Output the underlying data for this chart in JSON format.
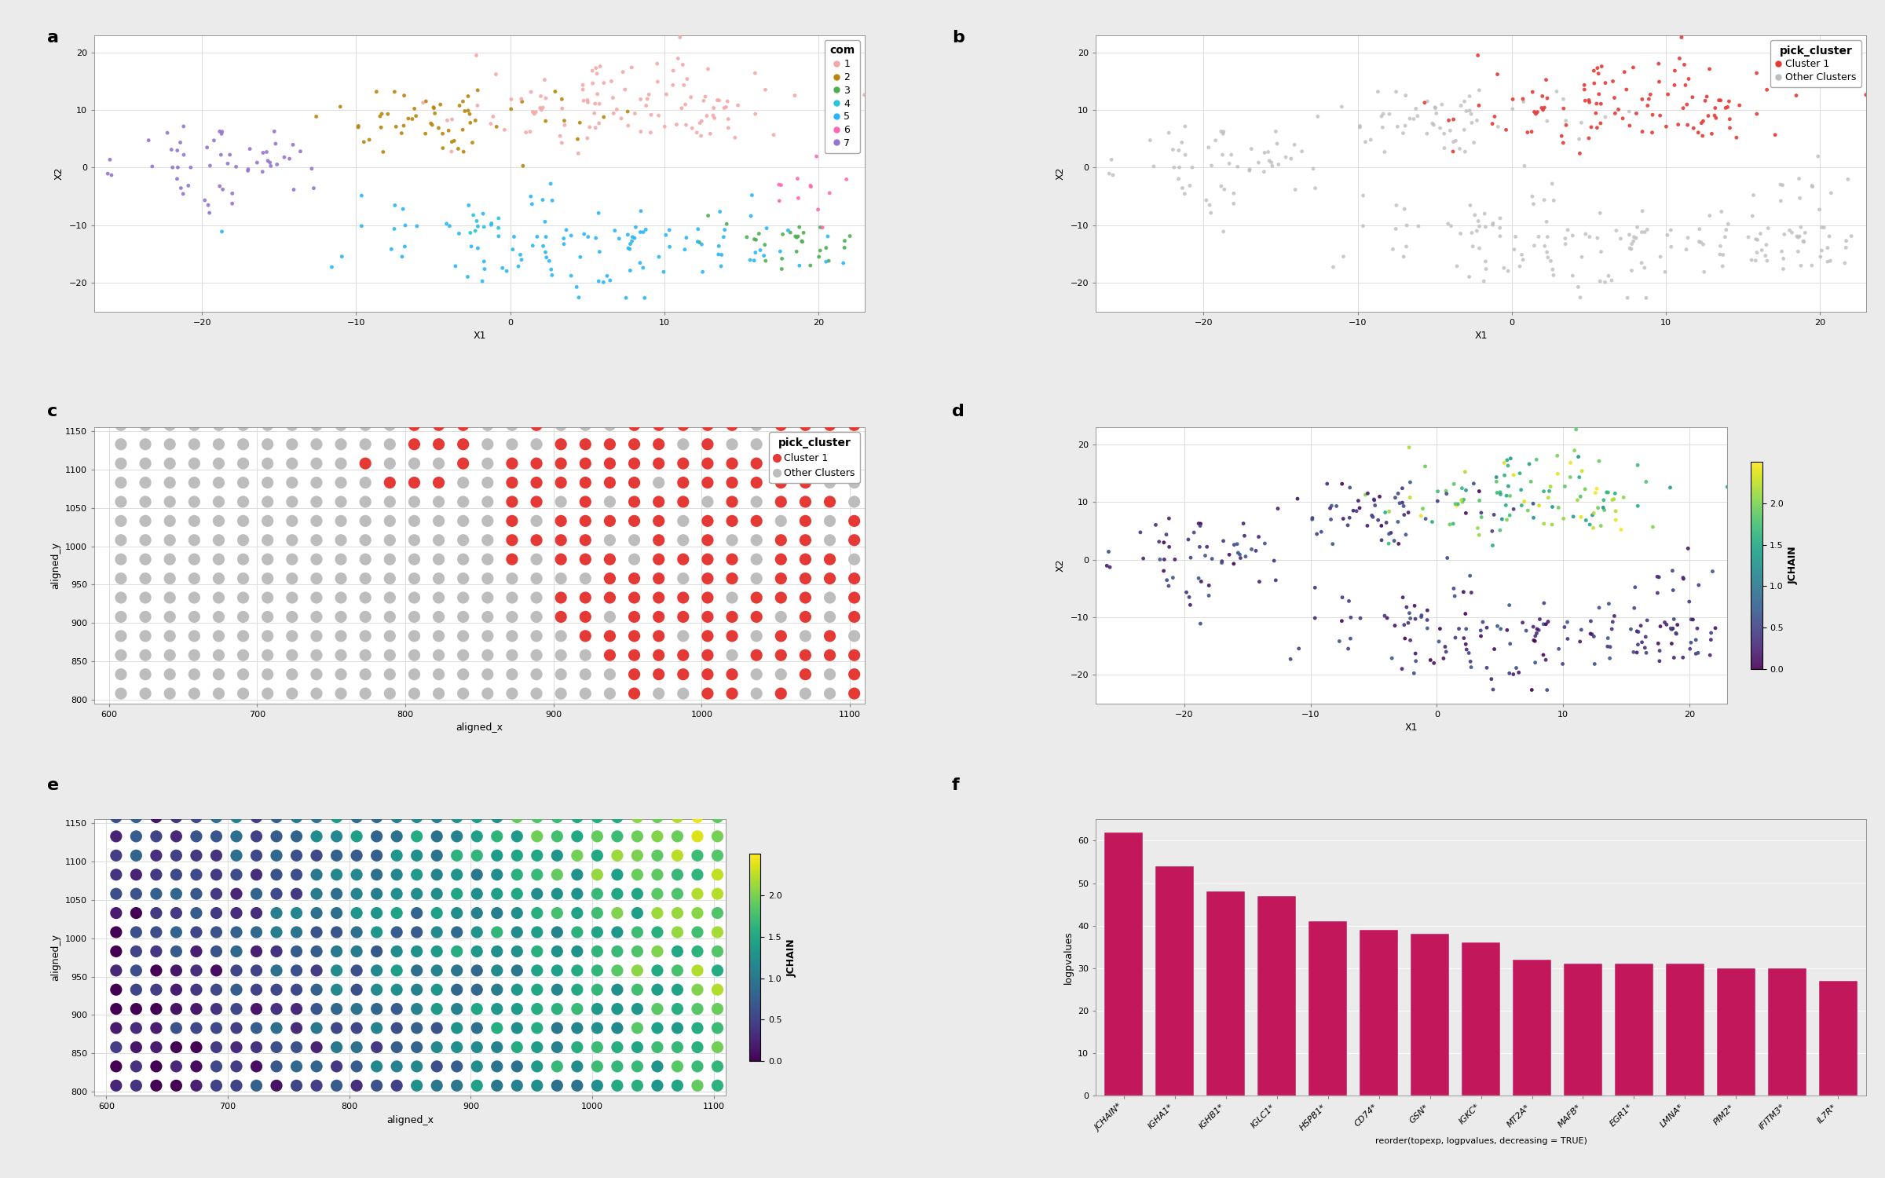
{
  "panel_a": {
    "title": "a",
    "xlabel": "X1",
    "ylabel": "X2",
    "legend_title": "com",
    "xlim": [
      -27,
      23
    ],
    "ylim": [
      -25,
      23
    ],
    "cluster_colors": {
      "1": "#F4A8A8",
      "2": "#B8860B",
      "3": "#4CAF50",
      "4": "#26C6DA",
      "5": "#29B6F6",
      "6": "#FF69B4",
      "7": "#9575CD"
    },
    "cluster_params": {
      "1": [
        8,
        11,
        7,
        4,
        110
      ],
      "2": [
        -4,
        8,
        4,
        3,
        60
      ],
      "3": [
        18,
        -13,
        2.5,
        2,
        30
      ],
      "4": [
        -2,
        -9,
        1.5,
        1,
        8
      ],
      "5": [
        5,
        -13,
        8,
        4,
        120
      ],
      "6": [
        20,
        -4,
        1.5,
        2.5,
        12
      ],
      "7": [
        -18,
        0,
        3.5,
        3.5,
        55
      ]
    },
    "draw_order": [
      "7",
      "2",
      "1",
      "3",
      "4",
      "5",
      "6"
    ]
  },
  "panel_b": {
    "xlabel": "X1",
    "ylabel": "X2",
    "legend_title": "pick_cluster",
    "xlim": [
      -27,
      23
    ],
    "ylim": [
      -25,
      23
    ],
    "cluster1_color": "#E53935",
    "other_color": "#BDBDBD"
  },
  "panel_c": {
    "xlabel": "aligned_x",
    "ylabel": "aligned_y",
    "legend_title": "pick_cluster",
    "xlim": [
      590,
      1110
    ],
    "ylim": [
      795,
      1155
    ],
    "cluster1_color": "#E53935",
    "other_color": "#BDBDBD",
    "x_start": 608,
    "y_start": 808,
    "x_spacing": 16.5,
    "y_spacing": 25,
    "grid_nx": 32,
    "grid_ny": 15
  },
  "panel_d": {
    "xlabel": "X1",
    "ylabel": "X2",
    "legend_title": "JCHAIN",
    "xlim": [
      -27,
      23
    ],
    "ylim": [
      -25,
      23
    ],
    "cmap": "viridis",
    "vmin": 0.0,
    "vmax": 2.5,
    "colorbar_ticks": [
      0.0,
      0.5,
      1.0,
      1.5,
      2.0
    ]
  },
  "panel_e": {
    "xlabel": "aligned_x",
    "ylabel": "aligned_y",
    "legend_title": "JCHAIN",
    "xlim": [
      590,
      1110
    ],
    "ylim": [
      795,
      1155
    ],
    "cmap": "viridis",
    "vmin": 0.0,
    "vmax": 2.5,
    "colorbar_ticks": [
      0.0,
      0.5,
      1.0,
      1.5,
      2.0
    ]
  },
  "panel_f": {
    "xlabel": "reorder(topexp, logpvalues, decreasing = TRUE)",
    "ylabel": "logpvalues",
    "bar_color": "#C2185B",
    "genes": [
      "JCHAIN*",
      "IGHA1*",
      "IGHB1*",
      "IGLC1*",
      "HSPB1*",
      "CD74*",
      "GSN*",
      "IGKC*",
      "MT2A*",
      "MAFB*",
      "EGR1*",
      "LMNA*",
      "PIM2*",
      "IFITM3*",
      "IL7R*"
    ],
    "values": [
      62,
      54,
      48,
      47,
      41,
      39,
      38,
      36,
      32,
      31,
      31,
      31,
      30,
      30,
      27
    ],
    "ylim": [
      0,
      65
    ],
    "yticks": [
      0,
      10,
      20,
      30,
      40,
      50,
      60
    ]
  },
  "panel_labels_fontsize": 16,
  "axis_label_fontsize": 9,
  "tick_fontsize": 8,
  "legend_fontsize": 9,
  "legend_title_fontsize": 10,
  "bg_color": "#EBEBEB",
  "plot_bg_color": "#FFFFFF",
  "grid_color": "#FFFFFF",
  "marker_size_scatter": 12,
  "marker_size_spatial": 120
}
